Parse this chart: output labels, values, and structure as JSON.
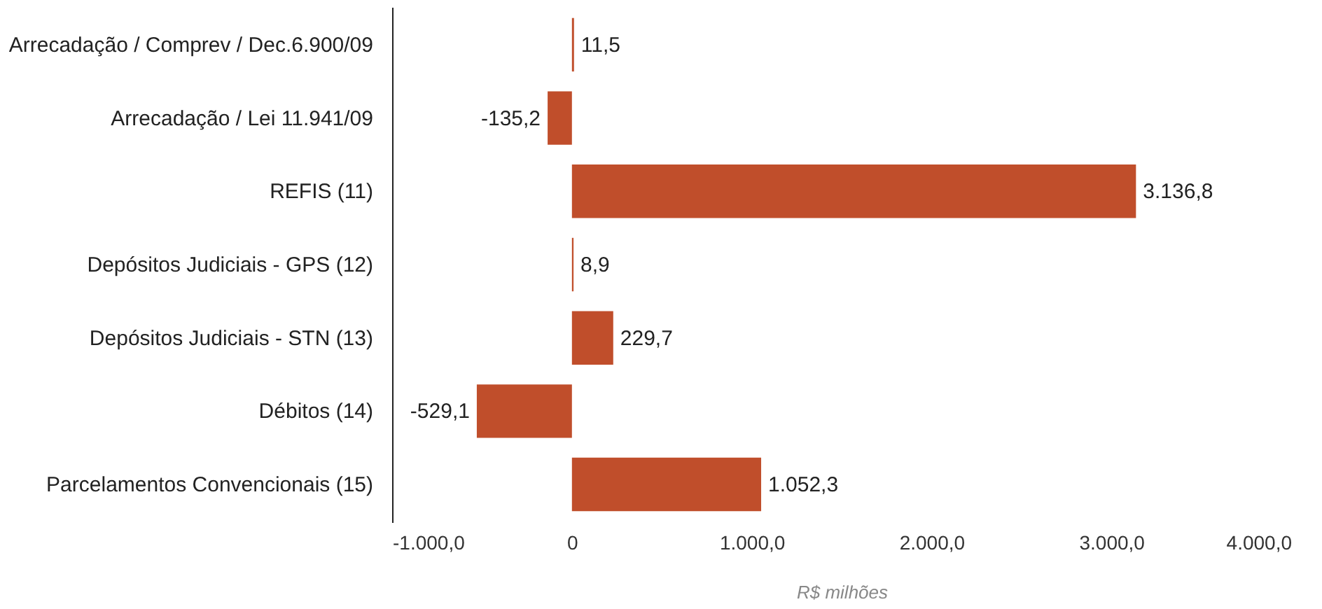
{
  "chart_data": {
    "type": "bar",
    "orientation": "horizontal",
    "xlabel": "R$ milhões",
    "categories": [
      "Arrecadação / Comprev / Dec.6.900/09",
      "Arrecadação / Lei 11.941/09",
      "REFIS (11)",
      "Depósitos Judiciais - GPS (12)",
      "Depósitos Judiciais - STN (13)",
      "Débitos  (14)",
      "Parcelamentos Convencionais (15)"
    ],
    "values": [
      11.5,
      -135.2,
      3136.8,
      8.9,
      229.7,
      -529.1,
      1052.3
    ],
    "value_labels": [
      "11,5",
      "-135,2",
      "3.136,8",
      "8,9",
      "229,7",
      "-529,1",
      "1.052,3"
    ],
    "color": "#c04e2b",
    "xlim": [
      -1000,
      4000
    ],
    "xticks": [
      {
        "value": -1000,
        "label": "-1.000,0"
      },
      0,
      {
        "value": 1000,
        "label": "1.000,0"
      },
      {
        "value": 2000,
        "label": "2.000,0"
      },
      {
        "value": 3000,
        "label": "3.000,0"
      },
      {
        "value": 4000,
        "label": "4.000,0"
      }
    ],
    "grid": false
  }
}
